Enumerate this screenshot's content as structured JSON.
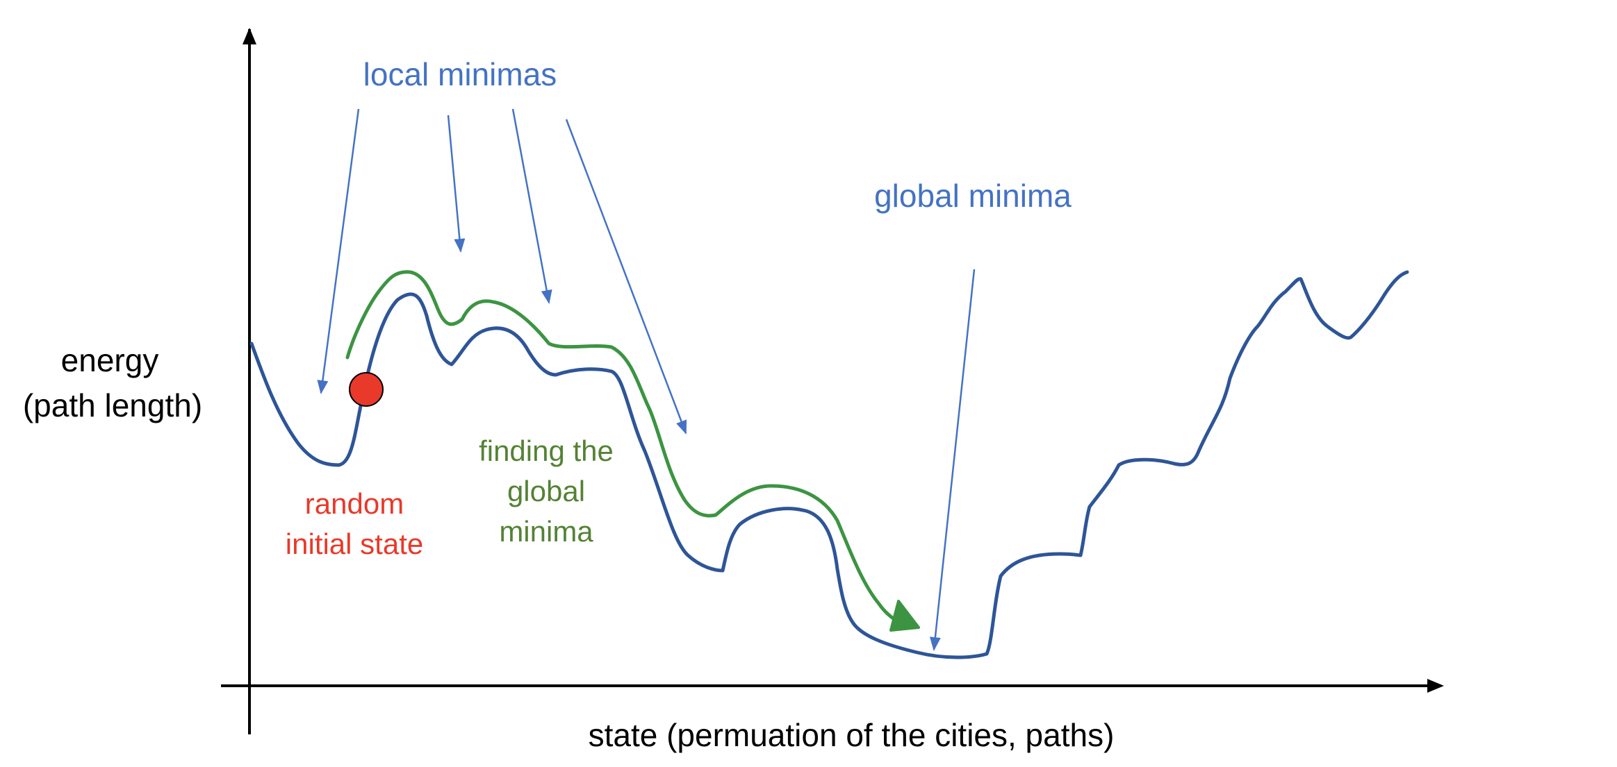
{
  "labels": {
    "y_axis_line1": "energy",
    "y_axis_line2": "(path length)",
    "x_axis": "state (permuation of the cities, paths)",
    "local_minimas": "local minimas",
    "global_minima": "global minima",
    "finding_line1": "finding the",
    "finding_line2": "global",
    "finding_line3": "minima",
    "random_line1": "random",
    "random_line2": "initial state"
  },
  "colors": {
    "axis": "#000000",
    "energy_curve": "#2E5597",
    "search_path": "#3C9442",
    "pointer_arrows": "#4472C4",
    "initial_state_marker": "#E8392A",
    "label_blue": "#4472C4",
    "label_green": "#548235",
    "label_red": "#E8392A"
  }
}
